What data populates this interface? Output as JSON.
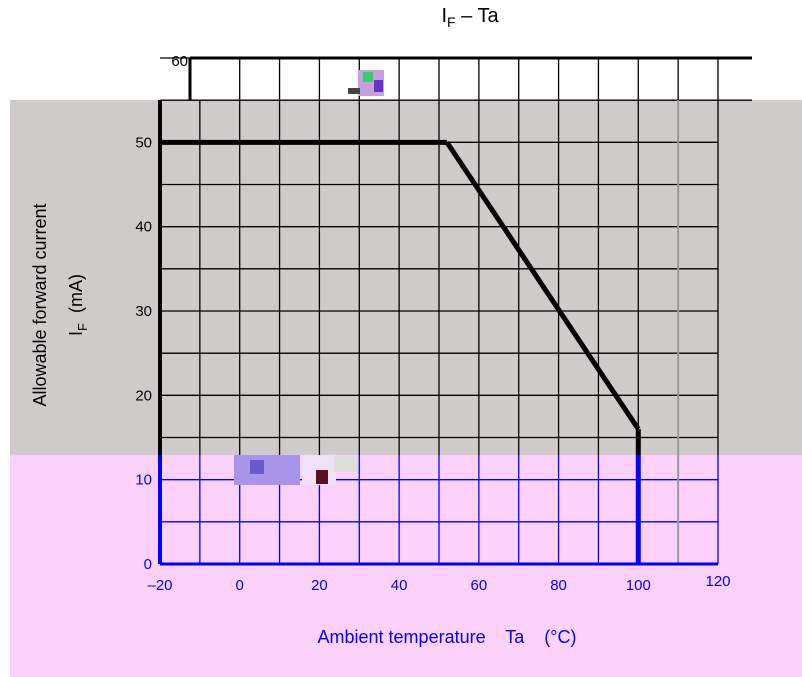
{
  "chart_data": {
    "type": "line",
    "title": "I",
    "title_sub": "F",
    "title_rest": " – Ta",
    "xlabel": "Ambient temperature    Ta    (°C)",
    "ylabel_line1": "Allowable forward current",
    "ylabel_line2_main": "I",
    "ylabel_line2_sub": "F",
    "ylabel_line2_unit": "(mA)",
    "x_ticks": [
      "–20",
      "0",
      "20",
      "40",
      "60",
      "80",
      "100",
      "120"
    ],
    "y_ticks": [
      "0",
      "10",
      "20",
      "30",
      "40",
      "50",
      "60"
    ],
    "xlim": [
      -20,
      120
    ],
    "ylim": [
      0,
      60
    ],
    "grid": true,
    "series": [
      {
        "x": [
          -20,
          52,
          100,
          100
        ],
        "y": [
          50,
          50,
          16,
          0
        ],
        "color": "#000000"
      }
    ]
  },
  "colors": {
    "gray_band": "#cfcbcb",
    "pink_band": "#fcd2fc",
    "blue_grid": "#0000ff",
    "black_grid": "#000000"
  }
}
